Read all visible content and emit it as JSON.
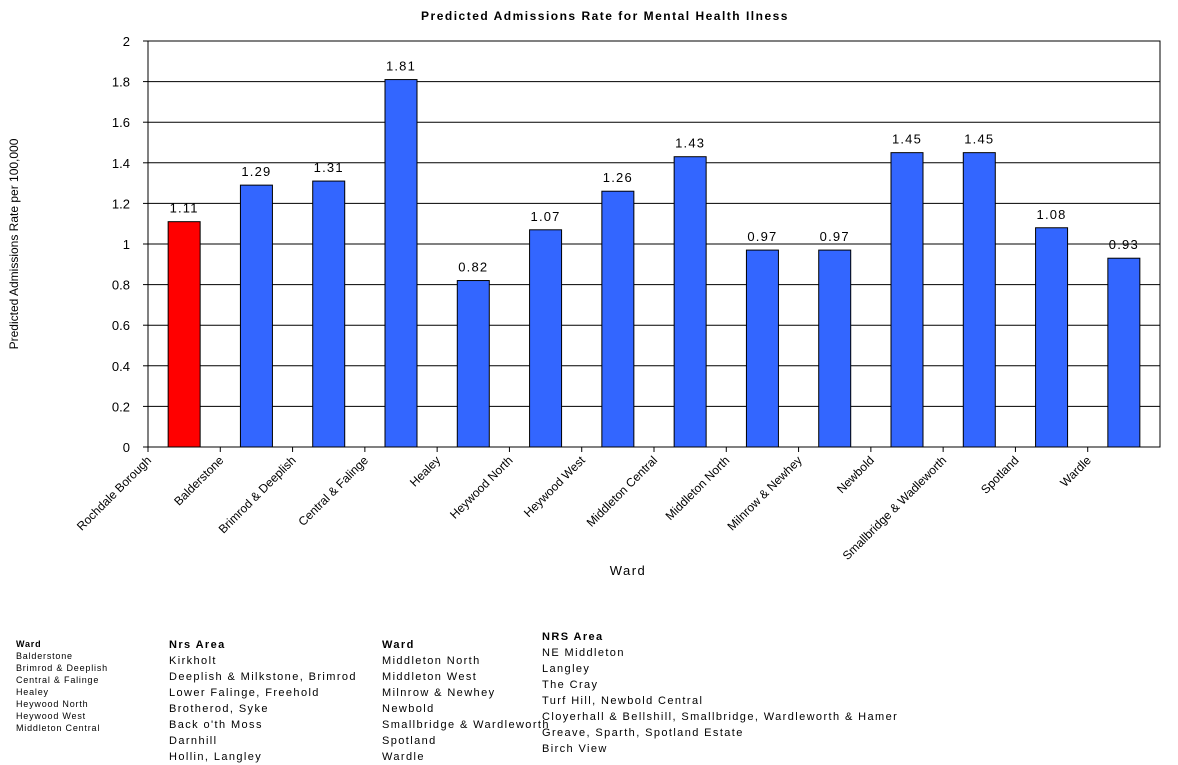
{
  "chart_data": {
    "type": "bar",
    "title": "Predicted Admissions Rate for Mental Health Ilness",
    "xlabel": "Ward",
    "ylabel": "Predicted Admissions Rate per 100,000",
    "ylim": [
      0,
      2
    ],
    "yticks": [
      "0",
      "0.2",
      "0.4",
      "0.6",
      "0.8",
      "1",
      "1.2",
      "1.4",
      "1.6",
      "1.8",
      "2"
    ],
    "grid": true,
    "categories": [
      "Rochdale Borough",
      "Balderstone",
      "Brimrod & Deeplish",
      "Central & Falinge",
      "Healey",
      "Heywood North",
      "Heywood West",
      "Middleton Central",
      "Middleton North",
      "Milnrow & Newhey",
      "Newbold",
      "Smallbridge & Wadleworth",
      "Spotland",
      "Wardle"
    ],
    "values": [
      1.11,
      1.29,
      1.31,
      1.81,
      0.82,
      1.07,
      1.26,
      1.43,
      0.97,
      0.97,
      1.45,
      1.45,
      1.08,
      0.93
    ],
    "value_labels": [
      "1.11",
      "1.29",
      "1.31",
      "1.81",
      "0.82",
      "1.07",
      "1.26",
      "1.43",
      "0.97",
      "0.97",
      "1.45",
      "1.45",
      "1.08",
      "0.93"
    ],
    "colors": {
      "highlight": "#ff0000",
      "bar": "#3366ff"
    },
    "highlight_index": 0
  },
  "table1": {
    "header": "Ward",
    "rows": [
      "Balderstone",
      "Brimrod & Deeplish",
      "Central & Falinge",
      "Healey",
      "Heywood North",
      "Heywood West",
      "Middleton Central"
    ]
  },
  "table2": {
    "header": "Nrs Area",
    "rows": [
      "Kirkholt",
      "Deeplish & Milkstone, Brimrod",
      "Lower Falinge, Freehold",
      "Brotherod, Syke",
      "Back o'th Moss",
      "Darnhill",
      "Hollin, Langley"
    ]
  },
  "table3": {
    "header": "Ward",
    "rows": [
      "Middleton North",
      "Middleton West",
      "Milnrow & Newhey",
      "Newbold",
      "Smallbridge & Wardleworth",
      "Spotland",
      "Wardle"
    ]
  },
  "table4": {
    "header": "NRS Area",
    "rows": [
      "NE Middleton",
      "Langley",
      "The Cray",
      "Turf Hill, Newbold Central",
      "Cloyerhall & Bellshill, Smallbridge, Wardleworth & Hamer",
      "Greave, Sparth, Spotland Estate",
      "Birch View"
    ]
  }
}
